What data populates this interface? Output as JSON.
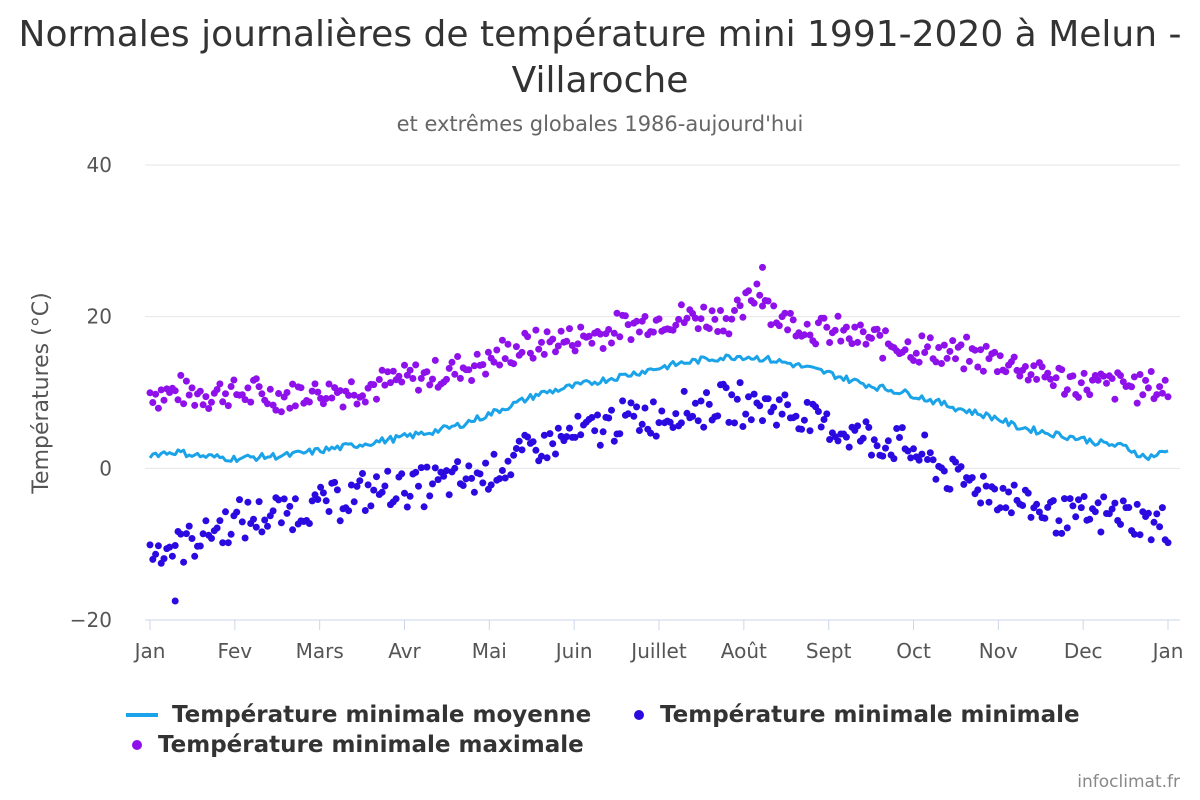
{
  "chart_data": {
    "type": "line",
    "title": "Normales journalières de température mini 1991-2020 à Melun - Villaroche",
    "subtitle": "et extrêmes globales 1986-aujourd'hui",
    "ylabel": "Températures (°C)",
    "ylim": [
      -20,
      40
    ],
    "yticks": [
      -20,
      0,
      20,
      40
    ],
    "x_categories": [
      "Jan",
      "Fev",
      "Mars",
      "Avr",
      "Mai",
      "Juin",
      "Juillet",
      "Août",
      "Sept",
      "Oct",
      "Nov",
      "Dec",
      "Jan"
    ],
    "grid": true,
    "legend_position": "bottom",
    "series": [
      {
        "name": "Température minimale moyenne",
        "style": "line",
        "color": "#1aa3e8",
        "x_doy": [
          1,
          10,
          20,
          31,
          40,
          50,
          59,
          70,
          80,
          90,
          100,
          110,
          120,
          130,
          140,
          151,
          160,
          170,
          181,
          190,
          200,
          212,
          220,
          230,
          243,
          250,
          260,
          273,
          280,
          290,
          304,
          310,
          320,
          334,
          340,
          350,
          357,
          361,
          365
        ],
        "values": [
          1.8,
          2.2,
          1.6,
          1.3,
          1.5,
          1.7,
          2.2,
          2.8,
          3.4,
          4.0,
          4.7,
          5.5,
          6.8,
          8.3,
          9.8,
          10.7,
          11.4,
          12.2,
          13.1,
          13.8,
          14.4,
          14.8,
          14.5,
          13.8,
          12.6,
          11.8,
          10.8,
          9.8,
          9.0,
          7.9,
          6.6,
          5.6,
          4.8,
          3.9,
          3.4,
          2.8,
          1.4,
          1.8,
          2.3
        ]
      },
      {
        "name": "Température minimale minimale",
        "style": "scatter",
        "color": "#2a0ae0",
        "x_doy": [
          1,
          15,
          31,
          46,
          59,
          74,
          90,
          105,
          120,
          135,
          151,
          166,
          181,
          196,
          212,
          227,
          243,
          258,
          273,
          288,
          304,
          319,
          334,
          349,
          365
        ],
        "values": [
          -11.0,
          -9.5,
          -7.0,
          -6.0,
          -5.0,
          -3.5,
          -2.5,
          -2.0,
          -1.0,
          2.0,
          4.0,
          6.0,
          7.0,
          8.0,
          8.5,
          8.0,
          5.5,
          4.0,
          2.5,
          -1.0,
          -3.0,
          -5.5,
          -6.5,
          -6.0,
          -8.0
        ],
        "min_extreme": {
          "day": 10,
          "value": -17.5
        }
      },
      {
        "name": "Température minimale maximale",
        "style": "scatter",
        "color": "#8e10ea",
        "x_doy": [
          1,
          15,
          31,
          46,
          59,
          74,
          90,
          105,
          120,
          135,
          151,
          166,
          181,
          196,
          212,
          218,
          227,
          243,
          258,
          273,
          288,
          304,
          319,
          334,
          349,
          365
        ],
        "values": [
          10.0,
          10.0,
          10.0,
          9.5,
          10.0,
          10.5,
          11.5,
          12.5,
          14.0,
          16.0,
          17.0,
          18.0,
          19.5,
          20.0,
          20.0,
          24.0,
          19.5,
          18.0,
          17.0,
          16.0,
          15.0,
          14.5,
          12.5,
          11.0,
          11.0,
          10.5
        ],
        "max_extreme": {
          "day": 220,
          "value": 26.5
        }
      }
    ]
  },
  "credits": "infoclimat.fr"
}
